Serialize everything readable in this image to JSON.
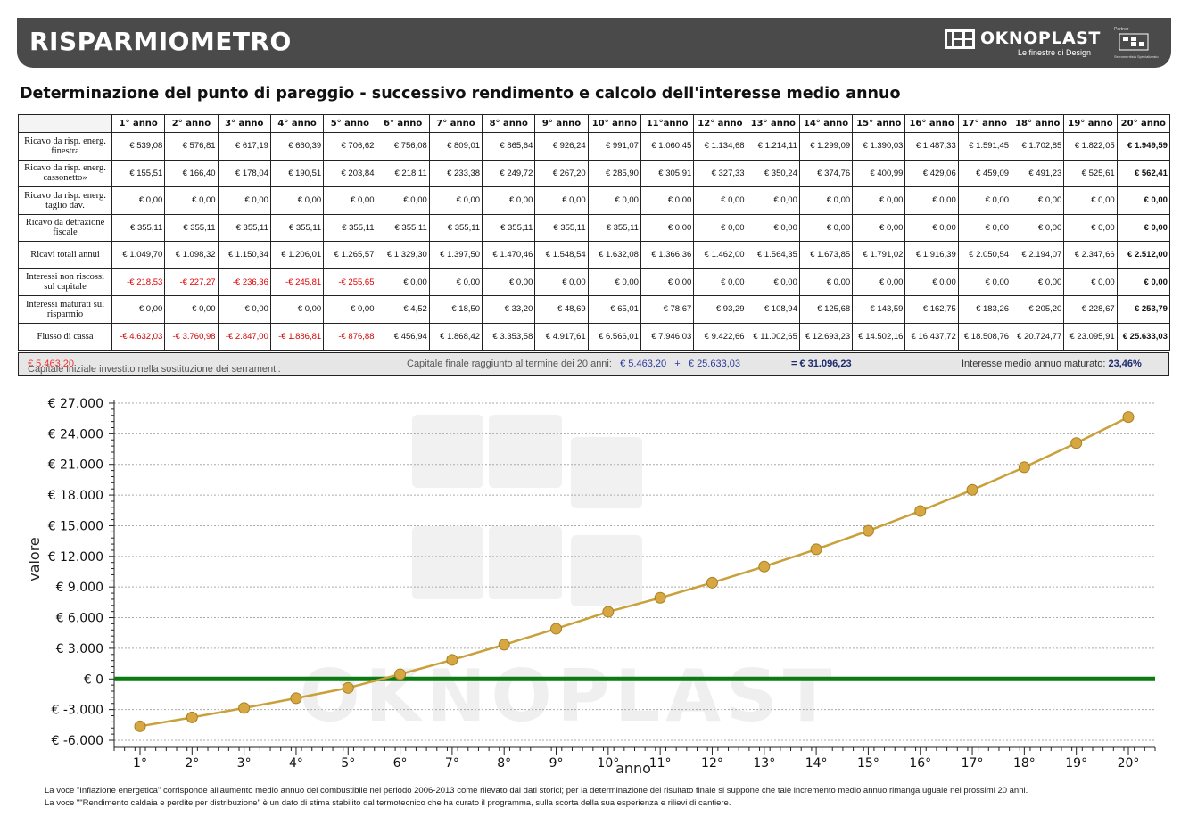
{
  "header": {
    "title": "RISPARMIOMETRO",
    "brand": "OKNOPLAST",
    "tagline": "Le finestre di Design",
    "partner_caption": "Partner",
    "partner_sub": "Serramentista Specializzato"
  },
  "doc_title": "Determinazione del punto di pareggio - successivo rendimento e calcolo dell'interesse medio annuo",
  "table": {
    "columns": [
      "1° anno",
      "2° anno",
      "3° anno",
      "4° anno",
      "5° anno",
      "6° anno",
      "7° anno",
      "8° anno",
      "9° anno",
      "10° anno",
      "11°anno",
      "12° anno",
      "13° anno",
      "14° anno",
      "15° anno",
      "16° anno",
      "17° anno",
      "18° anno",
      "19° anno",
      "20° anno"
    ],
    "rows": [
      {
        "label": "Ricavo da risp. energ. finestra",
        "values": [
          "€ 539,08",
          "€ 576,81",
          "€ 617,19",
          "€ 660,39",
          "€ 706,62",
          "€ 756,08",
          "€ 809,01",
          "€ 865,64",
          "€ 926,24",
          "€ 991,07",
          "€ 1.060,45",
          "€ 1.134,68",
          "€ 1.214,11",
          "€ 1.299,09",
          "€ 1.390,03",
          "€ 1.487,33",
          "€ 1.591,45",
          "€ 1.702,85",
          "€ 1.822,05",
          "€ 1.949,59"
        ]
      },
      {
        "label": "Ricavo da risp. energ. cassonetto»",
        "values": [
          "€ 155,51",
          "€ 166,40",
          "€ 178,04",
          "€ 190,51",
          "€ 203,84",
          "€ 218,11",
          "€ 233,38",
          "€ 249,72",
          "€ 267,20",
          "€ 285,90",
          "€ 305,91",
          "€ 327,33",
          "€ 350,24",
          "€ 374,76",
          "€ 400,99",
          "€ 429,06",
          "€ 459,09",
          "€ 491,23",
          "€ 525,61",
          "€ 562,41"
        ]
      },
      {
        "label": "Ricavo da risp. energ. taglio dav.",
        "values": [
          "€ 0,00",
          "€ 0,00",
          "€ 0,00",
          "€ 0,00",
          "€ 0,00",
          "€ 0,00",
          "€ 0,00",
          "€ 0,00",
          "€ 0,00",
          "€ 0,00",
          "€ 0,00",
          "€ 0,00",
          "€ 0,00",
          "€ 0,00",
          "€ 0,00",
          "€ 0,00",
          "€ 0,00",
          "€ 0,00",
          "€ 0,00",
          "€ 0,00"
        ]
      },
      {
        "label": "Ricavo da detrazione fiscale",
        "values": [
          "€ 355,11",
          "€ 355,11",
          "€ 355,11",
          "€ 355,11",
          "€ 355,11",
          "€ 355,11",
          "€ 355,11",
          "€ 355,11",
          "€ 355,11",
          "€ 355,11",
          "€ 0,00",
          "€ 0,00",
          "€ 0,00",
          "€ 0,00",
          "€ 0,00",
          "€ 0,00",
          "€ 0,00",
          "€ 0,00",
          "€ 0,00",
          "€ 0,00"
        ]
      },
      {
        "label": "Ricavi totali annui",
        "values": [
          "€ 1.049,70",
          "€ 1.098,32",
          "€ 1.150,34",
          "€ 1.206,01",
          "€ 1.265,57",
          "€ 1.329,30",
          "€ 1.397,50",
          "€ 1.470,46",
          "€ 1.548,54",
          "€ 1.632,08",
          "€ 1.366,36",
          "€ 1.462,00",
          "€ 1.564,35",
          "€ 1.673,85",
          "€ 1.791,02",
          "€ 1.916,39",
          "€ 2.050,54",
          "€ 2.194,07",
          "€ 2.347,66",
          "€ 2.512,00"
        ]
      },
      {
        "label": "Interessi non riscossi sul capitale",
        "values": [
          "-€ 218,53",
          "-€ 227,27",
          "-€ 236,36",
          "-€ 245,81",
          "-€ 255,65",
          "€ 0,00",
          "€ 0,00",
          "€ 0,00",
          "€ 0,00",
          "€ 0,00",
          "€ 0,00",
          "€ 0,00",
          "€ 0,00",
          "€ 0,00",
          "€ 0,00",
          "€ 0,00",
          "€ 0,00",
          "€ 0,00",
          "€ 0,00",
          "€ 0,00"
        ]
      },
      {
        "label": "Interessi maturati sul risparmio",
        "values": [
          "€ 0,00",
          "€ 0,00",
          "€ 0,00",
          "€ 0,00",
          "€ 0,00",
          "€ 4,52",
          "€ 18,50",
          "€ 33,20",
          "€ 48,69",
          "€ 65,01",
          "€ 78,67",
          "€ 93,29",
          "€ 108,94",
          "€ 125,68",
          "€ 143,59",
          "€ 162,75",
          "€ 183,26",
          "€ 205,20",
          "€ 228,67",
          "€ 253,79"
        ]
      },
      {
        "label": "Flusso di cassa",
        "values": [
          "-€ 4.632,03",
          "-€ 3.760,98",
          "-€ 2.847,00",
          "-€ 1.886,81",
          "-€ 876,88",
          "€ 456,94",
          "€ 1.868,42",
          "€ 3.353,58",
          "€ 4.917,61",
          "€ 6.566,01",
          "€ 7.946,03",
          "€ 9.422,66",
          "€ 11.002,65",
          "€ 12.693,23",
          "€ 14.502,16",
          "€ 16.437,72",
          "€ 18.508,76",
          "€ 20.724,77",
          "€ 23.095,91",
          "€ 25.633,03"
        ]
      }
    ]
  },
  "summary": {
    "capital_label": "Capitale iniziale investito nella sostituzione dei serramenti:",
    "capital_value": "€ 5.463,20",
    "final_label": "Capitale finale raggiunto al termine dei 20 anni:",
    "final_a": "€ 5.463,20",
    "plus": "+",
    "final_b": "€ 25.633,03",
    "total": "= € 31.096,23",
    "interest_label": "Interesse medio annuo maturato:",
    "interest_value": "23,46%"
  },
  "chart_data": {
    "type": "line",
    "xlabel": "anno",
    "ylabel": "valore",
    "categories": [
      "1°",
      "2°",
      "3°",
      "4°",
      "5°",
      "6°",
      "7°",
      "8°",
      "9°",
      "10°",
      "11°",
      "12°",
      "13°",
      "14°",
      "15°",
      "16°",
      "17°",
      "18°",
      "19°",
      "20°"
    ],
    "values": [
      -4632.03,
      -3760.98,
      -2847.0,
      -1886.81,
      -876.88,
      456.94,
      1868.42,
      3353.58,
      4917.61,
      6566.01,
      7946.03,
      9422.66,
      11002.65,
      12693.23,
      14502.16,
      16437.72,
      18508.76,
      20724.77,
      23095.91,
      25633.03
    ],
    "ylim": [
      -6000,
      27000
    ],
    "yticks": [
      "€ 27.000",
      "€ 24.000",
      "€ 21.000",
      "€ 18.000",
      "€ 15.000",
      "€ 12.000",
      "€ 9.000",
      "€ 6.000",
      "€ 3.000",
      "€ 0",
      "€ -3.000",
      "€ -6.000"
    ],
    "ytick_values": [
      27000,
      24000,
      21000,
      18000,
      15000,
      12000,
      9000,
      6000,
      3000,
      0,
      -3000,
      -6000
    ],
    "grid": true,
    "line_color": "#c9a03a",
    "marker_color": "#d7a842",
    "zero_line_color": "#0a7a12",
    "watermark": "OKNOPLAST"
  },
  "footnotes": [
    "La voce \"Inflazione energetica\" corrisponde all'aumento medio annuo del combustibile nel periodo 2006-2013 come rilevato dai dati storici; per la determinazione del risultato finale si suppone che tale incremento medio annuo rimanga uguale nei prossimi 20 anni.",
    "La voce \"\"Rendimento caldaia e perdite per distribuzione\" è un dato di stima stabilito dal termotecnico che ha curato il programma, sulla scorta della sua esperienza e rilievi di cantiere."
  ]
}
